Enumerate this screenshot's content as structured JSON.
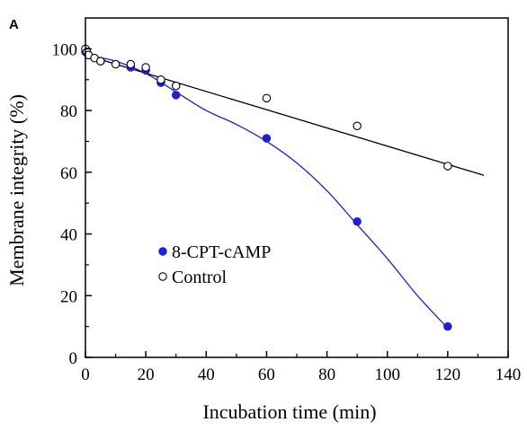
{
  "chart_data": {
    "type": "scatter",
    "panel_label": "A",
    "xlabel": "Incubation time (min)",
    "ylabel": "Membrane integrity (%)",
    "xlim": [
      0,
      140
    ],
    "ylim": [
      0,
      110
    ],
    "xticks": [
      0,
      20,
      40,
      60,
      80,
      100,
      120,
      140
    ],
    "yticks": [
      0,
      20,
      40,
      60,
      80,
      100
    ],
    "grid": false,
    "legend_position": "lower-left",
    "series": [
      {
        "name": "8-CPT-cAMP",
        "marker": "filled-circle",
        "color": "#1f1fd6",
        "x": [
          0,
          1,
          5,
          15,
          20,
          25,
          30,
          60,
          90,
          120
        ],
        "y": [
          99,
          98,
          96,
          94,
          93,
          89,
          85,
          71,
          44,
          10
        ],
        "fit": {
          "type": "curve",
          "x": [
            0,
            10,
            20,
            30,
            40,
            50,
            60,
            70,
            80,
            90,
            100,
            110,
            120
          ],
          "y": [
            98,
            96,
            92,
            86,
            80,
            75.5,
            70,
            63,
            54,
            43,
            32,
            20,
            9.5
          ]
        }
      },
      {
        "name": "Control",
        "marker": "open-circle",
        "color": "#000000",
        "x": [
          0,
          0.5,
          1,
          3,
          5,
          10,
          15,
          20,
          25,
          30,
          60,
          90,
          120
        ],
        "y": [
          100,
          99,
          98,
          97,
          96,
          95,
          95,
          94,
          90,
          88,
          84,
          75,
          62
        ],
        "fit": {
          "type": "line",
          "x": [
            0,
            132
          ],
          "y": [
            98,
            59
          ]
        }
      }
    ]
  }
}
